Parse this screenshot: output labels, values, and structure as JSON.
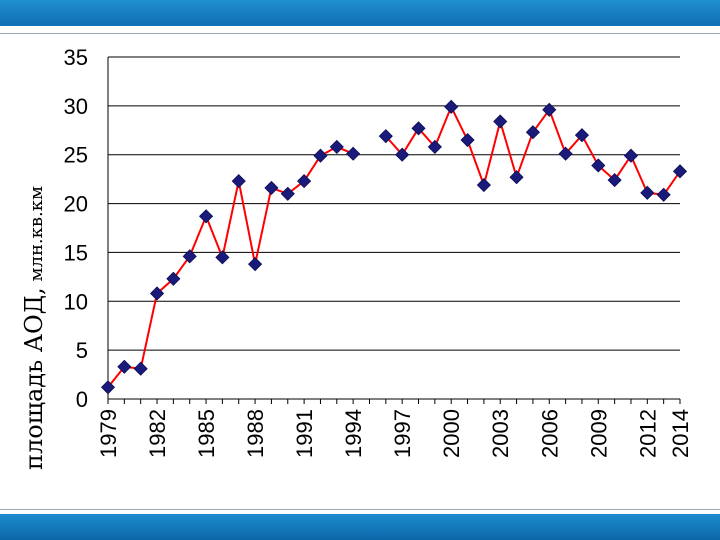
{
  "slide": {
    "accent_color": "#1480c4",
    "rule_color": "#9aa6b2"
  },
  "chart_data": {
    "type": "line",
    "title": "",
    "ylabel": "площадь АОД, млн.кв.км",
    "ylabel_parts": [
      "площадь АОД,",
      " млн.кв.км"
    ],
    "xlabel": "",
    "ylim": [
      0,
      35
    ],
    "xlim": [
      1979,
      2014
    ],
    "y_ticks": [
      "0",
      "5",
      "10",
      "15",
      "20",
      "25",
      "30",
      "35"
    ],
    "x_ticks": [
      "1979",
      "1982",
      "1985",
      "1988",
      "1991",
      "1994",
      "1997",
      "2000",
      "2003",
      "2006",
      "2009",
      "2012",
      "2014"
    ],
    "grid": true,
    "line_color": "#ff0000",
    "marker_color": "#1a1a7a",
    "marker": "diamond",
    "series": [
      {
        "segments": [
          {
            "x": [
              1979,
              1980,
              1981,
              1982,
              1983,
              1984,
              1985,
              1986,
              1987,
              1988,
              1989,
              1990,
              1991,
              1992,
              1993,
              1994
            ],
            "y": [
              1.2,
              3.3,
              3.1,
              10.8,
              12.3,
              14.6,
              18.7,
              14.5,
              22.3,
              13.8,
              21.6,
              21.0,
              22.3,
              24.9,
              25.8,
              25.1
            ]
          },
          {
            "x": [
              1996,
              1997,
              1998,
              1999,
              2000,
              2001,
              2002,
              2003,
              2004,
              2005,
              2006,
              2007,
              2008,
              2009,
              2010,
              2011,
              2012,
              2013,
              2014
            ],
            "y": [
              26.9,
              25.0,
              27.7,
              25.8,
              29.9,
              26.5,
              21.9,
              28.4,
              22.7,
              27.3,
              29.6,
              25.1,
              27.0,
              23.9,
              22.4,
              24.9,
              21.1,
              20.9,
              23.3
            ]
          }
        ]
      }
    ]
  }
}
